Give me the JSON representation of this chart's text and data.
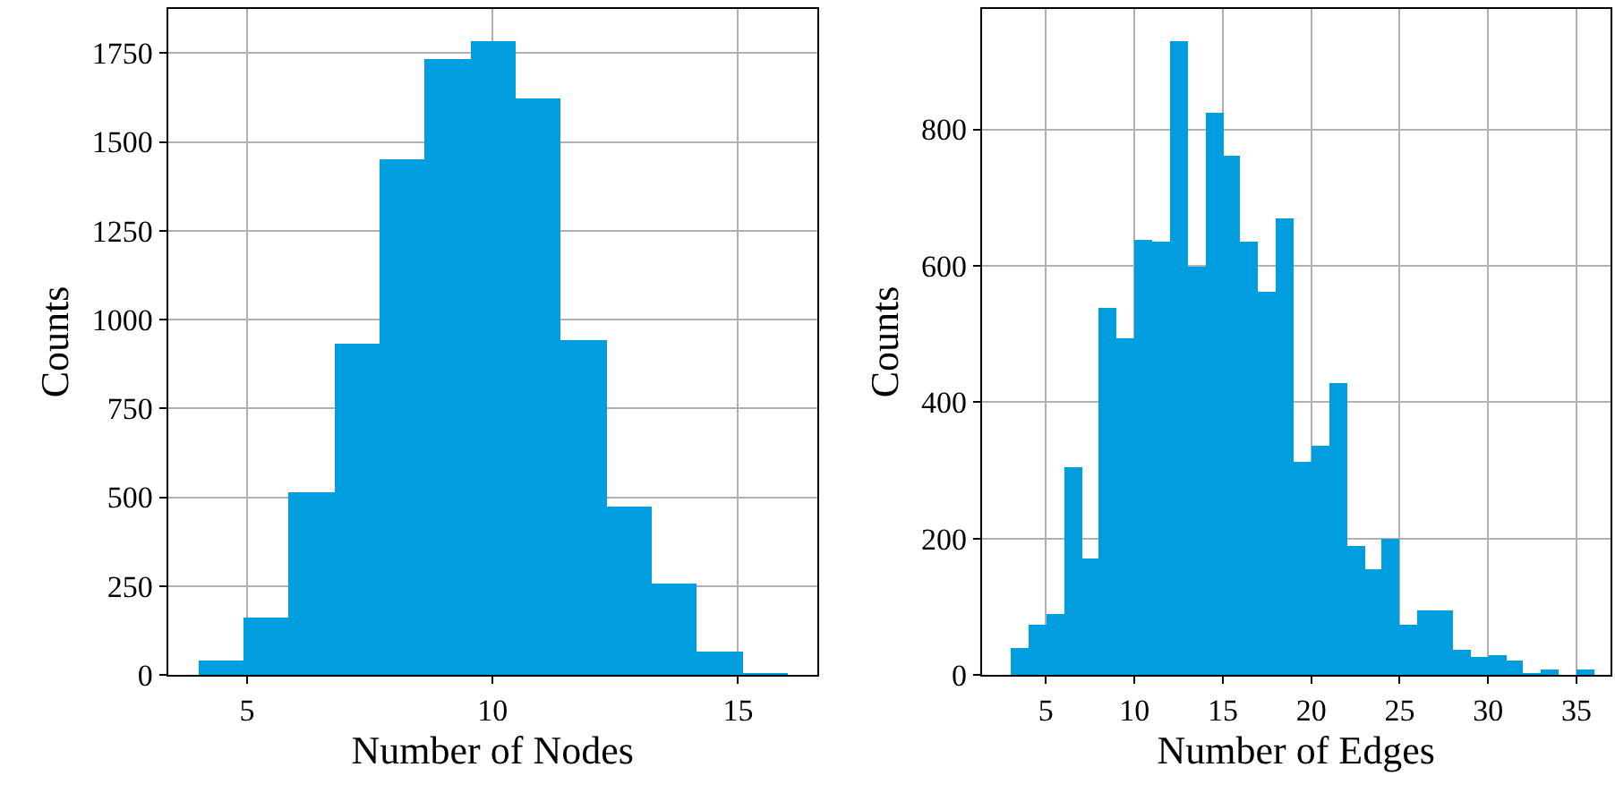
{
  "chart_data": [
    {
      "type": "histogram",
      "xlabel": "Number of Nodes",
      "ylabel": "Counts",
      "color": "#009ddf",
      "bins": [
        4,
        4.923,
        5.846,
        6.769,
        7.692,
        8.615,
        9.538,
        10.462,
        11.385,
        12.308,
        13.231,
        14.154,
        15.077,
        16
      ],
      "values": [
        39,
        163,
        517,
        934,
        1451,
        1732,
        1786,
        1623,
        941,
        473,
        256,
        67,
        3
      ],
      "xlim": [
        3.39,
        16.61
      ],
      "xticks": [
        5,
        10,
        15
      ],
      "ylim": [
        0,
        1875
      ],
      "yticks": [
        0,
        250,
        500,
        750,
        1000,
        1250,
        1500,
        1750
      ],
      "grid": true
    },
    {
      "type": "histogram",
      "xlabel": "Number of Edges",
      "ylabel": "Counts",
      "color": "#009ddf",
      "bins": [
        3,
        4,
        5,
        6,
        7,
        8,
        9,
        10,
        11,
        12,
        13,
        14,
        15,
        16,
        17,
        18,
        19,
        20,
        21,
        22,
        23,
        24,
        25,
        26,
        27,
        28,
        29,
        30,
        31,
        32,
        33,
        34,
        35,
        36
      ],
      "values": [
        40,
        74,
        90,
        306,
        170,
        538,
        494,
        639,
        636,
        929,
        600,
        826,
        761,
        636,
        561,
        669,
        314,
        336,
        429,
        189,
        154,
        199,
        75,
        94,
        95,
        36,
        27,
        29,
        21,
        3,
        7,
        0,
        7
      ],
      "xlim": [
        1.38,
        36.9
      ],
      "xticks": [
        5,
        10,
        15,
        20,
        25,
        30,
        35
      ],
      "ylim": [
        0,
        977
      ],
      "yticks": [
        0,
        200,
        400,
        600,
        800
      ],
      "grid": true
    }
  ]
}
